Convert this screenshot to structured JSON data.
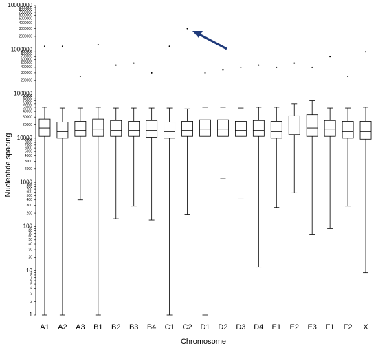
{
  "chart_data": {
    "type": "box",
    "x_label": "Chromosome",
    "y_label": "Nucleotide spacing",
    "log_scale": true,
    "ylim": [
      1,
      10000000
    ],
    "yticks": [
      1,
      2,
      3,
      4,
      5,
      6,
      7,
      8,
      9,
      10,
      20,
      30,
      40,
      50,
      60,
      70,
      80,
      90,
      100,
      200,
      300,
      400,
      500,
      600,
      700,
      800,
      900,
      1000,
      2000,
      3000,
      4000,
      5000,
      6000,
      7000,
      8000,
      9000,
      10000,
      20000,
      30000,
      40000,
      50000,
      60000,
      70000,
      80000,
      90000,
      100000,
      200000,
      300000,
      400000,
      500000,
      600000,
      700000,
      800000,
      900000,
      1000000,
      2000000,
      3000000,
      4000000,
      5000000,
      6000000,
      7000000,
      8000000,
      9000000,
      10000000
    ],
    "color": "#000000",
    "box_fill": "#ffffff",
    "annotation_color": "#1f3a7a",
    "categories": [
      "A1",
      "A2",
      "A3",
      "B1",
      "B2",
      "B3",
      "B4",
      "C1",
      "C2",
      "D1",
      "D2",
      "D3",
      "D4",
      "E1",
      "E2",
      "E3",
      "F1",
      "F2",
      "X"
    ],
    "boxes": [
      {
        "whisker_low": 1,
        "q1": 11000,
        "median": 17000,
        "q3": 27000,
        "whisker_high": 50000,
        "outliers": [
          1200000
        ]
      },
      {
        "whisker_low": 1,
        "q1": 10000,
        "median": 14000,
        "q3": 23000,
        "whisker_high": 48000,
        "outliers": [
          1200000
        ]
      },
      {
        "whisker_low": 400,
        "q1": 11000,
        "median": 15000,
        "q3": 24000,
        "whisker_high": 48000,
        "outliers": [
          250000
        ]
      },
      {
        "whisker_low": 1,
        "q1": 11000,
        "median": 16000,
        "q3": 27000,
        "whisker_high": 50000,
        "outliers": [
          1300000
        ]
      },
      {
        "whisker_low": 150,
        "q1": 11000,
        "median": 15000,
        "q3": 25000,
        "whisker_high": 48000,
        "outliers": [
          450000
        ]
      },
      {
        "whisker_low": 290,
        "q1": 11000,
        "median": 15000,
        "q3": 24000,
        "whisker_high": 48000,
        "outliers": [
          500000
        ]
      },
      {
        "whisker_low": 140,
        "q1": 10500,
        "median": 15000,
        "q3": 25000,
        "whisker_high": 48000,
        "outliers": [
          300000
        ]
      },
      {
        "whisker_low": 1,
        "q1": 10000,
        "median": 14000,
        "q3": 23000,
        "whisker_high": 48000,
        "outliers": [
          1200000
        ]
      },
      {
        "whisker_low": 190,
        "q1": 11000,
        "median": 15000,
        "q3": 24000,
        "whisker_high": 46000,
        "outliers": [
          3000000
        ]
      },
      {
        "whisker_low": 1,
        "q1": 11000,
        "median": 16000,
        "q3": 26000,
        "whisker_high": 50000,
        "outliers": [
          300000
        ]
      },
      {
        "whisker_low": 1200,
        "q1": 11000,
        "median": 16000,
        "q3": 26000,
        "whisker_high": 50000,
        "outliers": [
          350000
        ]
      },
      {
        "whisker_low": 420,
        "q1": 11000,
        "median": 15000,
        "q3": 24000,
        "whisker_high": 48000,
        "outliers": [
          400000
        ]
      },
      {
        "whisker_low": 12,
        "q1": 11000,
        "median": 15000,
        "q3": 25000,
        "whisker_high": 50000,
        "outliers": [
          450000
        ]
      },
      {
        "whisker_low": 270,
        "q1": 10000,
        "median": 14000,
        "q3": 24000,
        "whisker_high": 50000,
        "outliers": [
          400000
        ]
      },
      {
        "whisker_low": 580,
        "q1": 12000,
        "median": 18000,
        "q3": 32000,
        "whisker_high": 60000,
        "outliers": [
          500000
        ]
      },
      {
        "whisker_low": 65,
        "q1": 11000,
        "median": 17000,
        "q3": 34000,
        "whisker_high": 70000,
        "outliers": [
          400000
        ]
      },
      {
        "whisker_low": 90,
        "q1": 11000,
        "median": 16000,
        "q3": 25000,
        "whisker_high": 48000,
        "outliers": [
          700000
        ]
      },
      {
        "whisker_low": 290,
        "q1": 10000,
        "median": 14000,
        "q3": 24000,
        "whisker_high": 48000,
        "outliers": [
          250000
        ]
      },
      {
        "whisker_low": 9,
        "q1": 9500,
        "median": 14000,
        "q3": 24000,
        "whisker_high": 50000,
        "outliers": [
          900000
        ]
      }
    ]
  }
}
